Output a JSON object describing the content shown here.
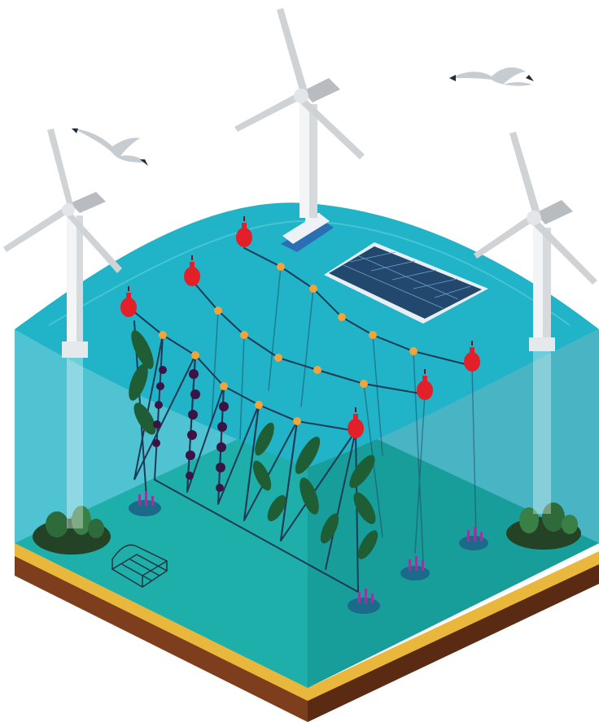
{
  "illustration": {
    "colors": {
      "sea_surface": "#21b3c7",
      "water_left": "#1fb2c6",
      "water_right": "#169fb4",
      "seabed": "#1fa44a",
      "seabed_dark": "#17893c",
      "sand": "#e9b73b",
      "soil": "#7c3e1c",
      "soil_dark": "#5a2a12",
      "turbine_white": "#f3f4f5",
      "turbine_grey": "#b8bcc0",
      "buoy_red": "#e3202a",
      "line_node": "#f2a33a",
      "rope": "#1d3a55",
      "solar_panel": "#22486e",
      "kelp_green": "#1f5e34",
      "seaweed_purple": "#3b1445",
      "boat_white": "#eef2f6",
      "boat_blue": "#2a6fb3",
      "gull_grey": "#c7ccd1"
    },
    "objects": {
      "turbines": 3,
      "buoys": 6,
      "gulls": 2,
      "solar_arrays": 1,
      "boats": 1,
      "lobster_traps": 1
    }
  }
}
